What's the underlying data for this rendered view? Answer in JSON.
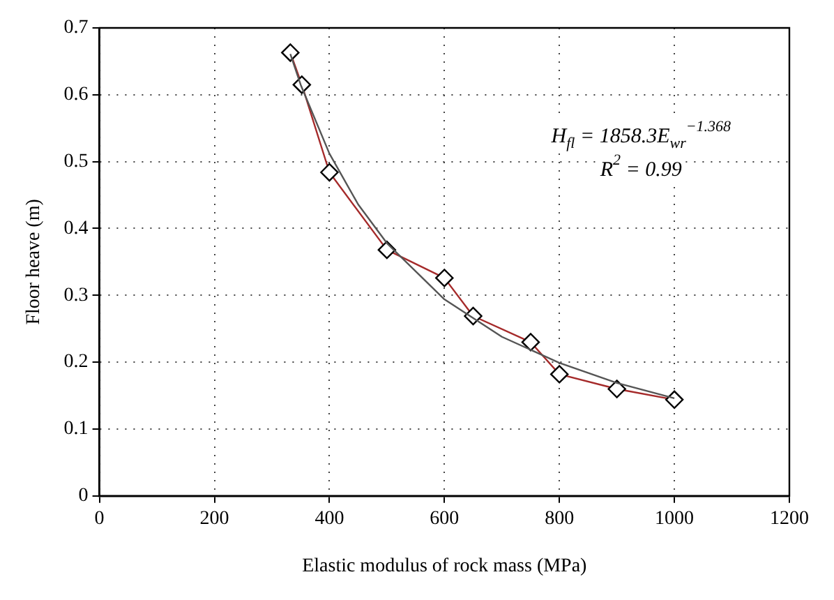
{
  "chart_data": {
    "type": "line",
    "xlabel": "Elastic modulus of rock mass (MPa)",
    "ylabel": "Floor heave (m)",
    "xlim": [
      0,
      1200
    ],
    "xticks": [
      0,
      200,
      400,
      600,
      800,
      1000,
      1200
    ],
    "ylim": [
      0,
      0.7
    ],
    "yticks": [
      0,
      0.1,
      0.2,
      0.3,
      0.4,
      0.5,
      0.6,
      0.7
    ],
    "grid": true,
    "legend": false,
    "line_style": "solid",
    "annotations": [
      "H$_{fl}$ = 1858.3E$_{wr}$$^{−1.368}$",
      "R$^{2}$ = 0.99"
    ],
    "series": [
      {
        "type": "line",
        "color": "#555555",
        "marker": "none",
        "x": [
          332,
          350,
          400,
          450,
          500,
          600,
          700,
          800,
          900,
          1000
        ],
        "values": [
          0.661,
          0.615,
          0.512,
          0.436,
          0.378,
          0.294,
          0.238,
          0.199,
          0.169,
          0.146
        ]
      },
      {
        "type": "line",
        "color": "#a52a2a",
        "marker": "diamond",
        "x": [
          332,
          352,
          400,
          500,
          600,
          650,
          750,
          800,
          900,
          1000
        ],
        "values": [
          0.663,
          0.615,
          0.484,
          0.368,
          0.326,
          0.269,
          0.23,
          0.182,
          0.16,
          0.144
        ]
      }
    ]
  }
}
